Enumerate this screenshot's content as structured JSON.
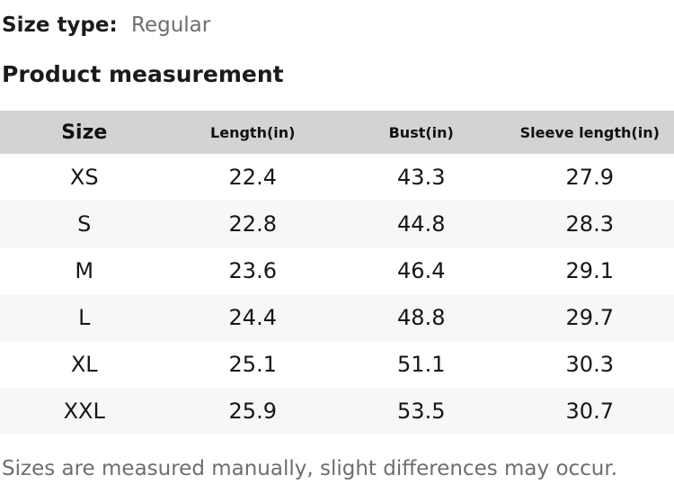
{
  "size_type": {
    "label": "Size type:",
    "value": "Regular"
  },
  "section_title": "Product measurement",
  "table": {
    "headers": [
      "Size",
      "Length(in)",
      "Bust(in)",
      "Sleeve length(in)"
    ],
    "rows": [
      [
        "XS",
        "22.4",
        "43.3",
        "27.9"
      ],
      [
        "S",
        "22.8",
        "44.8",
        "28.3"
      ],
      [
        "M",
        "23.6",
        "46.4",
        "29.1"
      ],
      [
        "L",
        "24.4",
        "48.8",
        "29.7"
      ],
      [
        "XL",
        "25.1",
        "51.1",
        "30.3"
      ],
      [
        "XXL",
        "25.9",
        "53.5",
        "30.7"
      ]
    ]
  },
  "footnote": "Sizes are measured manually, slight differences may occur.",
  "colors": {
    "header_bg": "#d3d3d3",
    "alt_row_bg": "#f7f7f7",
    "text": "#1b1b1b",
    "muted": "#6e6e6e"
  }
}
